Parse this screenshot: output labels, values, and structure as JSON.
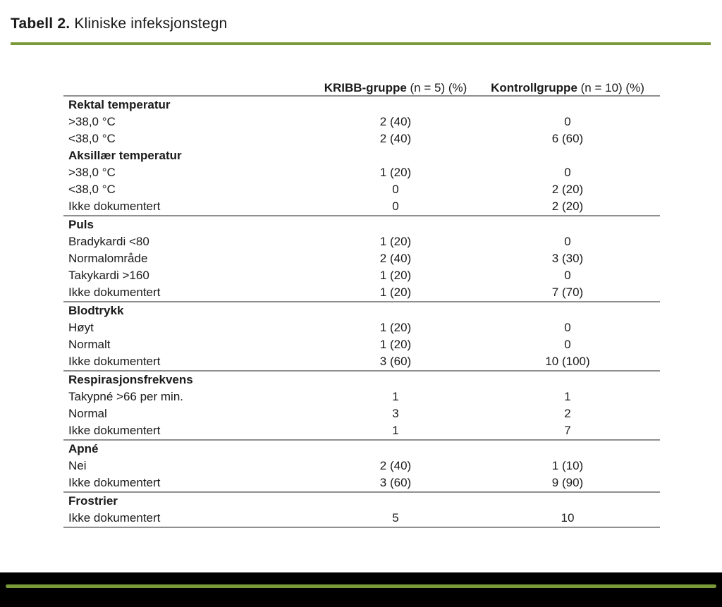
{
  "title": {
    "bold": "Tabell 2.",
    "rest": " Kliniske infeksjonstegn"
  },
  "colors": {
    "accent_green": "#7a9a3a",
    "divider_gray": "#8f8f8f",
    "footer_black": "#000000",
    "text": "#1a1a1a"
  },
  "table": {
    "col1": {
      "bold": "KRIBB-gruppe",
      "rest": " (n = 5) (%)"
    },
    "col2": {
      "bold": "Kontrollgruppe",
      "rest": " (n = 10) (%)"
    },
    "sections": [
      {
        "rows": [
          {
            "label": "Rektal temperatur",
            "v1": "",
            "v2": ""
          },
          {
            "label": ">38,0 °C",
            "v1": "2 (40)",
            "v2": "0"
          },
          {
            "label": "<38,0 °C",
            "v1": "2 (40)",
            "v2": "6 (60)"
          },
          {
            "label": "Aksillær temperatur",
            "v1": "",
            "v2": ""
          },
          {
            "label": ">38,0 °C",
            "v1": "1 (20)",
            "v2": "0"
          },
          {
            "label": "<38,0 °C",
            "v1": "0",
            "v2": "2 (20)"
          },
          {
            "label": "Ikke dokumentert",
            "v1": "0",
            "v2": "2 (20)"
          }
        ]
      },
      {
        "rows": [
          {
            "label": "Puls",
            "v1": "",
            "v2": ""
          },
          {
            "label": "Bradykardi <80",
            "v1": "1 (20)",
            "v2": "0"
          },
          {
            "label": "Normalområde",
            "v1": "2 (40)",
            "v2": "3 (30)"
          },
          {
            "label": "Takykardi >160",
            "v1": "1 (20)",
            "v2": "0"
          },
          {
            "label": "Ikke dokumentert",
            "v1": "1 (20)",
            "v2": "7 (70)"
          }
        ]
      },
      {
        "rows": [
          {
            "label": "Blodtrykk",
            "v1": "",
            "v2": ""
          },
          {
            "label": "Høyt",
            "v1": "1 (20)",
            "v2": "0"
          },
          {
            "label": "Normalt",
            "v1": "1 (20)",
            "v2": "0"
          },
          {
            "label": "Ikke dokumentert",
            "v1": "3 (60)",
            "v2": "10 (100)"
          }
        ]
      },
      {
        "rows": [
          {
            "label": "Respirasjonsfrekvens",
            "v1": "",
            "v2": ""
          },
          {
            "label": "Takypné >66 per min.",
            "v1": "1",
            "v2": "1"
          },
          {
            "label": "Normal",
            "v1": "3",
            "v2": "2"
          },
          {
            "label": "Ikke dokumentert",
            "v1": "1",
            "v2": "7"
          }
        ]
      },
      {
        "rows": [
          {
            "label": "Apné",
            "v1": "",
            "v2": ""
          },
          {
            "label": "Nei",
            "v1": "2 (40)",
            "v2": "1 (10)"
          },
          {
            "label": "Ikke dokumentert",
            "v1": "3 (60)",
            "v2": "9 (90)"
          }
        ]
      },
      {
        "rows": [
          {
            "label": "Frostrier",
            "v1": "",
            "v2": ""
          },
          {
            "label": "Ikke dokumentert",
            "v1": "5",
            "v2": "10"
          }
        ]
      }
    ]
  }
}
